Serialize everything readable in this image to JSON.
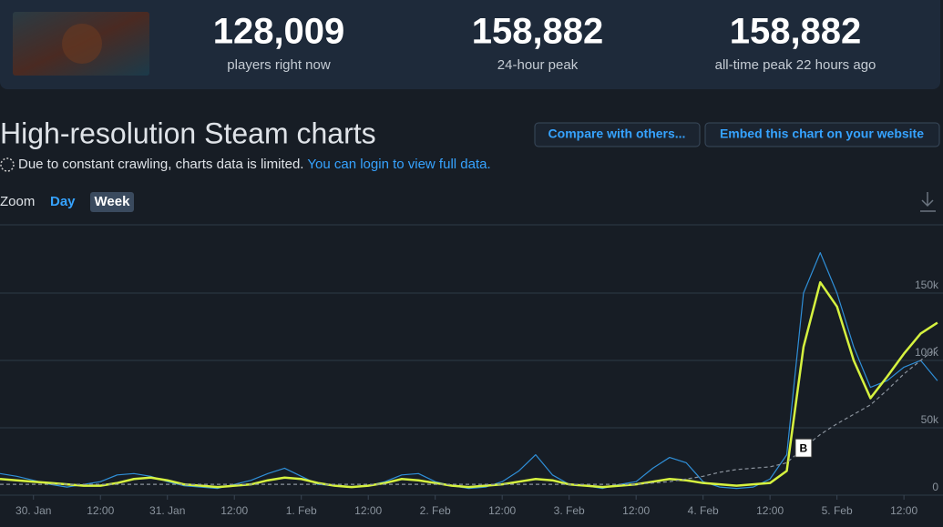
{
  "stats": [
    {
      "value": "128,009",
      "label": "players right now"
    },
    {
      "value": "158,882",
      "label": "24-hour peak"
    },
    {
      "value": "158,882",
      "label": "all-time peak 22 hours ago"
    }
  ],
  "title": "High-resolution Steam charts",
  "buttons": [
    "Compare with others...",
    "Embed this chart on your website"
  ],
  "notice": {
    "text": "Due to constant crawling, charts data is limited.",
    "link": "You can login to view full data."
  },
  "zoom": {
    "label": "Zoom",
    "options": [
      "Day",
      "Week"
    ]
  },
  "chart_data": {
    "type": "line",
    "x": [
      -6,
      -3,
      0,
      3,
      6,
      9,
      12,
      15,
      18,
      21,
      24,
      27,
      30,
      33,
      36,
      39,
      42,
      45,
      48,
      51,
      54,
      57,
      60,
      63,
      66,
      69,
      72,
      75,
      78,
      81,
      84,
      87,
      90,
      93,
      96,
      99,
      102,
      105,
      108,
      111,
      114,
      117,
      120,
      123,
      126,
      129,
      132,
      135,
      138,
      141,
      144,
      147,
      150,
      153,
      156,
      159,
      162
    ],
    "series": [
      {
        "color": "#2f8fd8",
        "values": [
          16000,
          14000,
          11000,
          8000,
          6000,
          8000,
          10000,
          15000,
          16000,
          14000,
          10000,
          7000,
          6000,
          5000,
          8000,
          11000,
          16000,
          20000,
          14000,
          8000,
          7000,
          6000,
          7000,
          10000,
          15000,
          16000,
          10000,
          7000,
          5000,
          6000,
          10000,
          18000,
          30000,
          15000,
          8000,
          7000,
          5000,
          8000,
          10000,
          20000,
          28000,
          24000,
          10000,
          6000,
          5000,
          6000,
          12000,
          30000,
          150000,
          180000,
          150000,
          110000,
          80000,
          85000,
          95000,
          100000,
          85000
        ]
      },
      {
        "color": "#d6f23f",
        "values": [
          12000,
          11000,
          10000,
          9000,
          8000,
          7000,
          7000,
          9000,
          12000,
          13000,
          11000,
          8000,
          7000,
          6000,
          7000,
          8000,
          11000,
          13000,
          12000,
          9000,
          7000,
          6000,
          7000,
          9000,
          12000,
          11000,
          9000,
          7000,
          6000,
          7000,
          8000,
          10000,
          12000,
          11000,
          8000,
          7000,
          6000,
          7000,
          8000,
          10000,
          12000,
          11000,
          9000,
          8000,
          7000,
          8000,
          9000,
          18000,
          110000,
          158000,
          140000,
          100000,
          72000,
          88000,
          105000,
          120000,
          128000
        ]
      },
      {
        "color": "#8a929c",
        "dashed": true,
        "values": [
          8000,
          8000,
          8000,
          8000,
          8000,
          8000,
          8000,
          8000,
          8000,
          8000,
          8000,
          8000,
          8000,
          8000,
          8000,
          8000,
          8000,
          8000,
          8000,
          8000,
          8000,
          8000,
          8000,
          8000,
          8000,
          8000,
          8000,
          8000,
          8000,
          8000,
          8000,
          8000,
          8000,
          8000,
          8000,
          8000,
          8000,
          8000,
          8000,
          9000,
          10000,
          12000,
          14000,
          17000,
          19000,
          20000,
          21000,
          24000,
          35000,
          45000,
          53000,
          60000,
          67000,
          78000,
          90000,
          100000,
          110000
        ]
      }
    ],
    "xlim": [
      -6,
      163
    ],
    "xticks": [
      {
        "value": 0,
        "label": "30. Jan"
      },
      {
        "value": 12,
        "label": "12:00"
      },
      {
        "value": 24,
        "label": "31. Jan"
      },
      {
        "value": 36,
        "label": "12:00"
      },
      {
        "value": 48,
        "label": "1. Feb"
      },
      {
        "value": 60,
        "label": "12:00"
      },
      {
        "value": 72,
        "label": "2. Feb"
      },
      {
        "value": 84,
        "label": "12:00"
      },
      {
        "value": 96,
        "label": "3. Feb"
      },
      {
        "value": 108,
        "label": "12:00"
      },
      {
        "value": 120,
        "label": "4. Feb"
      },
      {
        "value": 132,
        "label": "12:00"
      },
      {
        "value": 144,
        "label": "5. Feb"
      },
      {
        "value": 156,
        "label": "12:00"
      }
    ],
    "ylim": [
      0,
      200000
    ],
    "yticks": [
      0,
      {
        "value": 50000,
        "label": "50k"
      },
      {
        "value": 100000,
        "label": "100k"
      },
      {
        "value": 150000,
        "label": "150k"
      }
    ],
    "grid": true,
    "annotations": [
      {
        "text": "B",
        "x": 138,
        "y": 35000
      }
    ]
  }
}
